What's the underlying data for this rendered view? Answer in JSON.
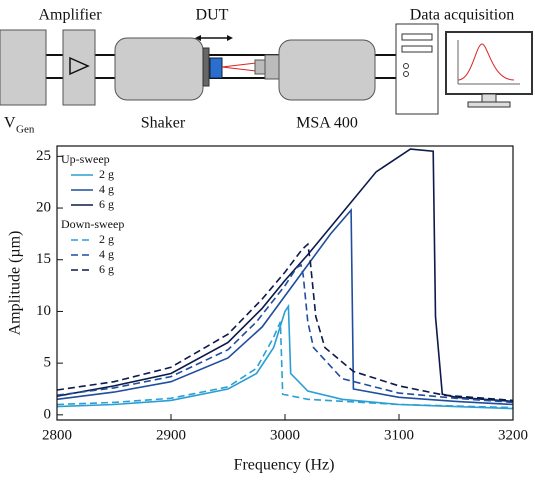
{
  "diagram": {
    "labels": {
      "amplifier": "Amplifier",
      "dut": "DUT",
      "daq": "Data acquisition",
      "vgen": "V",
      "vgen_sub": "Gen",
      "shaker": "Shaker",
      "msa": "MSA 400"
    }
  },
  "chart_data": {
    "type": "line",
    "xlabel": "Frequency (Hz)",
    "ylabel": "Amplitude (µm)",
    "xlim": [
      2800,
      3200
    ],
    "ylim": [
      -0.5,
      26
    ],
    "xticks": [
      2800,
      2900,
      3000,
      3100,
      3200
    ],
    "yticks": [
      0,
      5,
      10,
      15,
      20,
      25
    ],
    "legend": "upper left",
    "legend_groups": [
      "Up-sweep",
      "Down-sweep"
    ],
    "series": [
      {
        "name": "2 g",
        "group": 0,
        "style": "solid",
        "color": "#2b9fd4",
        "x": [
          2800,
          2850,
          2900,
          2950,
          2975,
          2990,
          3000,
          3003,
          3005,
          3020,
          3050,
          3100,
          3150,
          3200
        ],
        "values": [
          0.8,
          1.0,
          1.4,
          2.5,
          4.0,
          6.5,
          10.0,
          10.5,
          4.0,
          2.3,
          1.5,
          1.0,
          0.8,
          0.6
        ]
      },
      {
        "name": "4 g",
        "group": 0,
        "style": "solid",
        "color": "#1f4e9e",
        "x": [
          2800,
          2850,
          2900,
          2950,
          2980,
          3000,
          3020,
          3040,
          3058,
          3060,
          3100,
          3150,
          3200
        ],
        "values": [
          1.5,
          2.2,
          3.2,
          5.5,
          8.5,
          11.5,
          14.5,
          17.5,
          19.8,
          2.5,
          1.7,
          1.3,
          1.0
        ]
      },
      {
        "name": "6 g",
        "group": 0,
        "style": "solid",
        "color": "#0d1a4a",
        "x": [
          2800,
          2850,
          2900,
          2950,
          2980,
          3000,
          3020,
          3050,
          3080,
          3110,
          3130,
          3132,
          3138,
          3150,
          3200
        ],
        "values": [
          1.8,
          2.8,
          4.0,
          7.0,
          10.3,
          13.0,
          15.5,
          19.5,
          23.5,
          25.7,
          25.5,
          9.5,
          2.0,
          1.7,
          1.3
        ]
      },
      {
        "name": "2 g",
        "group": 1,
        "style": "dashed",
        "color": "#2b9fd4",
        "x": [
          2800,
          2850,
          2900,
          2950,
          2975,
          2990,
          2996,
          2998,
          3020,
          3100,
          3200
        ],
        "values": [
          1.0,
          1.2,
          1.6,
          2.7,
          4.5,
          7.5,
          9.0,
          2.0,
          1.5,
          1.0,
          0.7
        ]
      },
      {
        "name": "4 g",
        "group": 1,
        "style": "dashed",
        "color": "#1f4e9e",
        "x": [
          2800,
          2850,
          2900,
          2950,
          2975,
          3000,
          3010,
          3014,
          3016,
          3020,
          3025,
          3050,
          3100,
          3150,
          3200
        ],
        "values": [
          1.9,
          2.6,
          3.7,
          6.3,
          9.0,
          12.5,
          14.2,
          14.5,
          13.5,
          9.0,
          6.5,
          3.5,
          2.1,
          1.6,
          1.2
        ]
      },
      {
        "name": "6 g",
        "group": 1,
        "style": "dashed",
        "color": "#0d1a4a",
        "x": [
          2800,
          2850,
          2900,
          2950,
          2980,
          3000,
          3015,
          3020,
          3022,
          3027,
          3035,
          3060,
          3100,
          3140,
          3200
        ],
        "values": [
          2.4,
          3.2,
          4.6,
          7.8,
          11.2,
          13.8,
          16.0,
          16.5,
          15.0,
          9.5,
          6.5,
          4.2,
          2.8,
          1.9,
          1.4
        ]
      }
    ]
  }
}
